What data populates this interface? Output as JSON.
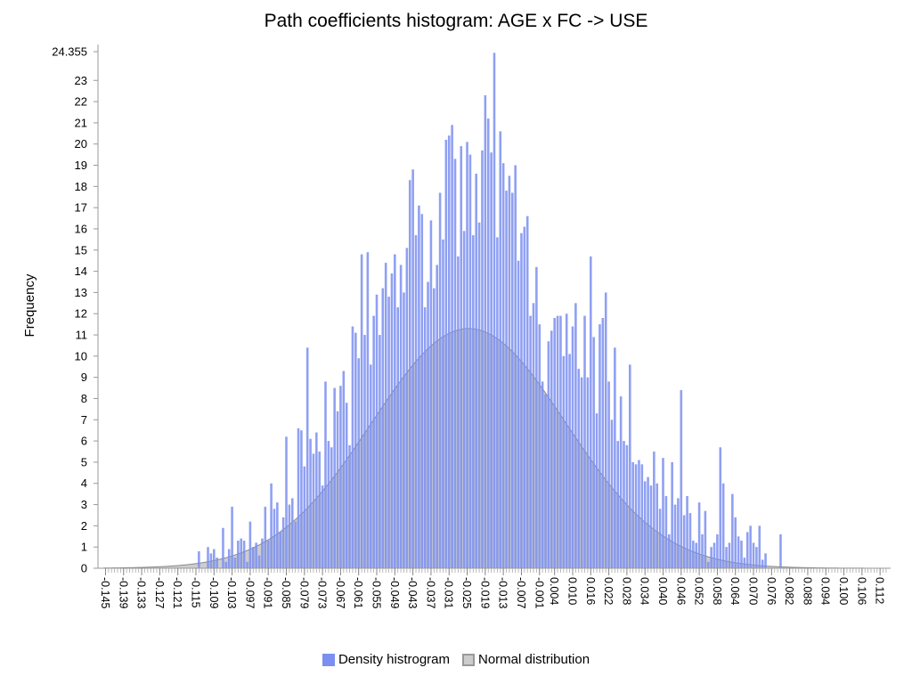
{
  "chart_data": {
    "type": "bar",
    "title": "Path coefficients histogram: AGE x FC -> USE",
    "ylabel": "Frequency",
    "xlabel": "",
    "ylim": [
      0,
      24.355
    ],
    "y_ticks": [
      "0",
      "1",
      "2",
      "3",
      "4",
      "5",
      "6",
      "7",
      "8",
      "9",
      "10",
      "11",
      "12",
      "13",
      "14",
      "15",
      "16",
      "17",
      "18",
      "19",
      "20",
      "21",
      "22",
      "23",
      "24.355"
    ],
    "x_tick_labels": [
      "-0.145",
      "-0.139",
      "-0.133",
      "-0.127",
      "-0.121",
      "-0.115",
      "-0.109",
      "-0.103",
      "-0.097",
      "-0.091",
      "-0.085",
      "-0.079",
      "-0.073",
      "-0.067",
      "-0.061",
      "-0.055",
      "-0.049",
      "-0.043",
      "-0.037",
      "-0.031",
      "-0.025",
      "-0.019",
      "-0.013",
      "-0.007",
      "-0.001",
      "0.004",
      "0.010",
      "0.016",
      "0.022",
      "0.028",
      "0.034",
      "0.040",
      "0.046",
      "0.052",
      "0.058",
      "0.064",
      "0.070",
      "0.076",
      "0.082",
      "0.088",
      "0.094",
      "0.100",
      "0.106",
      "0.112"
    ],
    "xlim": [
      -0.1475,
      0.1155
    ],
    "bin_width": 0.001,
    "grid": false,
    "legend_position": "bottom-center",
    "series": [
      {
        "name": "Density histrogram",
        "kind": "bar",
        "color": "#7b8ff0",
        "bins": [
          [
            -0.114,
            0.8
          ],
          [
            -0.111,
            1.0
          ],
          [
            -0.11,
            0.7
          ],
          [
            -0.109,
            0.9
          ],
          [
            -0.108,
            0.5
          ],
          [
            -0.106,
            1.9
          ],
          [
            -0.105,
            0.3
          ],
          [
            -0.104,
            0.9
          ],
          [
            -0.103,
            2.9
          ],
          [
            -0.102,
            0.5
          ],
          [
            -0.101,
            1.3
          ],
          [
            -0.1,
            1.4
          ],
          [
            -0.099,
            1.3
          ],
          [
            -0.098,
            0.3
          ],
          [
            -0.097,
            2.2
          ],
          [
            -0.096,
            1.0
          ],
          [
            -0.095,
            1.2
          ],
          [
            -0.094,
            0.6
          ],
          [
            -0.093,
            1.4
          ],
          [
            -0.092,
            2.9
          ],
          [
            -0.091,
            1.3
          ],
          [
            -0.09,
            4.0
          ],
          [
            -0.089,
            2.8
          ],
          [
            -0.088,
            3.1
          ],
          [
            -0.087,
            1.7
          ],
          [
            -0.086,
            2.4
          ],
          [
            -0.085,
            6.2
          ],
          [
            -0.084,
            3.0
          ],
          [
            -0.083,
            3.3
          ],
          [
            -0.082,
            2.2
          ],
          [
            -0.081,
            6.6
          ],
          [
            -0.08,
            6.5
          ],
          [
            -0.079,
            4.8
          ],
          [
            -0.078,
            10.4
          ],
          [
            -0.077,
            6.1
          ],
          [
            -0.076,
            5.4
          ],
          [
            -0.075,
            6.4
          ],
          [
            -0.074,
            5.5
          ],
          [
            -0.073,
            3.9
          ],
          [
            -0.072,
            8.8
          ],
          [
            -0.071,
            6.0
          ],
          [
            -0.07,
            5.7
          ],
          [
            -0.069,
            8.5
          ],
          [
            -0.068,
            7.4
          ],
          [
            -0.067,
            8.6
          ],
          [
            -0.066,
            9.3
          ],
          [
            -0.065,
            7.8
          ],
          [
            -0.064,
            5.8
          ],
          [
            -0.063,
            11.4
          ],
          [
            -0.062,
            11.1
          ],
          [
            -0.061,
            9.9
          ],
          [
            -0.06,
            14.8
          ],
          [
            -0.059,
            11.0
          ],
          [
            -0.058,
            14.9
          ],
          [
            -0.057,
            9.6
          ],
          [
            -0.056,
            11.9
          ],
          [
            -0.055,
            12.9
          ],
          [
            -0.054,
            11.0
          ],
          [
            -0.053,
            13.2
          ],
          [
            -0.052,
            14.4
          ],
          [
            -0.051,
            12.8
          ],
          [
            -0.05,
            13.9
          ],
          [
            -0.049,
            14.8
          ],
          [
            -0.048,
            12.3
          ],
          [
            -0.047,
            14.3
          ],
          [
            -0.046,
            13.0
          ],
          [
            -0.045,
            15.1
          ],
          [
            -0.044,
            18.3
          ],
          [
            -0.043,
            18.8
          ],
          [
            -0.042,
            15.7
          ],
          [
            -0.041,
            17.1
          ],
          [
            -0.04,
            16.7
          ],
          [
            -0.039,
            12.3
          ],
          [
            -0.038,
            13.5
          ],
          [
            -0.037,
            16.4
          ],
          [
            -0.036,
            13.2
          ],
          [
            -0.035,
            14.3
          ],
          [
            -0.034,
            17.7
          ],
          [
            -0.033,
            15.5
          ],
          [
            -0.032,
            20.2
          ],
          [
            -0.031,
            20.4
          ],
          [
            -0.03,
            20.9
          ],
          [
            -0.029,
            19.3
          ],
          [
            -0.028,
            14.7
          ],
          [
            -0.027,
            19.9
          ],
          [
            -0.026,
            15.9
          ],
          [
            -0.025,
            20.1
          ],
          [
            -0.024,
            19.5
          ],
          [
            -0.023,
            15.7
          ],
          [
            -0.022,
            18.6
          ],
          [
            -0.021,
            16.3
          ],
          [
            -0.02,
            19.7
          ],
          [
            -0.019,
            22.3
          ],
          [
            -0.018,
            21.2
          ],
          [
            -0.017,
            19.6
          ],
          [
            -0.016,
            24.3
          ],
          [
            -0.015,
            15.6
          ],
          [
            -0.014,
            20.6
          ],
          [
            -0.013,
            19.1
          ],
          [
            -0.012,
            17.8
          ],
          [
            -0.011,
            18.5
          ],
          [
            -0.01,
            17.7
          ],
          [
            -0.009,
            19.0
          ],
          [
            -0.008,
            14.5
          ],
          [
            -0.007,
            15.8
          ],
          [
            -0.006,
            16.1
          ],
          [
            -0.005,
            16.6
          ],
          [
            -0.004,
            11.9
          ],
          [
            -0.003,
            12.5
          ],
          [
            -0.002,
            14.2
          ],
          [
            -0.001,
            11.5
          ],
          [
            0.0,
            8.8
          ],
          [
            0.001,
            8.2
          ],
          [
            0.002,
            10.7
          ],
          [
            0.003,
            11.2
          ],
          [
            0.004,
            11.8
          ],
          [
            0.005,
            11.9
          ],
          [
            0.006,
            11.9
          ],
          [
            0.007,
            10.0
          ],
          [
            0.008,
            12.0
          ],
          [
            0.009,
            10.1
          ],
          [
            0.01,
            11.4
          ],
          [
            0.011,
            12.5
          ],
          [
            0.012,
            9.4
          ],
          [
            0.013,
            9.0
          ],
          [
            0.014,
            11.9
          ],
          [
            0.015,
            9.0
          ],
          [
            0.016,
            14.7
          ],
          [
            0.017,
            10.9
          ],
          [
            0.018,
            7.3
          ],
          [
            0.019,
            11.5
          ],
          [
            0.02,
            11.8
          ],
          [
            0.021,
            13.0
          ],
          [
            0.022,
            8.8
          ],
          [
            0.023,
            7.0
          ],
          [
            0.024,
            10.4
          ],
          [
            0.025,
            6.0
          ],
          [
            0.026,
            8.1
          ],
          [
            0.027,
            6.0
          ],
          [
            0.028,
            5.8
          ],
          [
            0.029,
            9.6
          ],
          [
            0.03,
            5.0
          ],
          [
            0.031,
            4.9
          ],
          [
            0.032,
            5.1
          ],
          [
            0.033,
            4.9
          ],
          [
            0.034,
            4.1
          ],
          [
            0.035,
            4.3
          ],
          [
            0.036,
            3.9
          ],
          [
            0.037,
            5.5
          ],
          [
            0.038,
            4.0
          ],
          [
            0.039,
            2.8
          ],
          [
            0.04,
            5.2
          ],
          [
            0.041,
            3.4
          ],
          [
            0.042,
            1.6
          ],
          [
            0.043,
            5.0
          ],
          [
            0.044,
            3.0
          ],
          [
            0.045,
            3.3
          ],
          [
            0.046,
            8.4
          ],
          [
            0.047,
            2.5
          ],
          [
            0.048,
            3.4
          ],
          [
            0.049,
            2.6
          ],
          [
            0.05,
            1.3
          ],
          [
            0.051,
            1.2
          ],
          [
            0.052,
            3.1
          ],
          [
            0.053,
            1.6
          ],
          [
            0.054,
            2.7
          ],
          [
            0.055,
            0.3
          ],
          [
            0.056,
            1.0
          ],
          [
            0.057,
            1.2
          ],
          [
            0.058,
            1.6
          ],
          [
            0.059,
            5.7
          ],
          [
            0.06,
            4.0
          ],
          [
            0.061,
            1.0
          ],
          [
            0.062,
            1.2
          ],
          [
            0.063,
            3.5
          ],
          [
            0.064,
            2.4
          ],
          [
            0.065,
            1.5
          ],
          [
            0.066,
            1.3
          ],
          [
            0.067,
            0.5
          ],
          [
            0.068,
            1.7
          ],
          [
            0.069,
            2.0
          ],
          [
            0.07,
            1.2
          ],
          [
            0.071,
            1.0
          ],
          [
            0.072,
            2.0
          ],
          [
            0.073,
            0.4
          ],
          [
            0.074,
            0.7
          ],
          [
            0.079,
            1.6
          ]
        ]
      },
      {
        "name": "Normal distribution",
        "kind": "area",
        "color": "#999999",
        "mean": -0.0245,
        "std": 0.0322,
        "peak": 11.3
      }
    ]
  }
}
